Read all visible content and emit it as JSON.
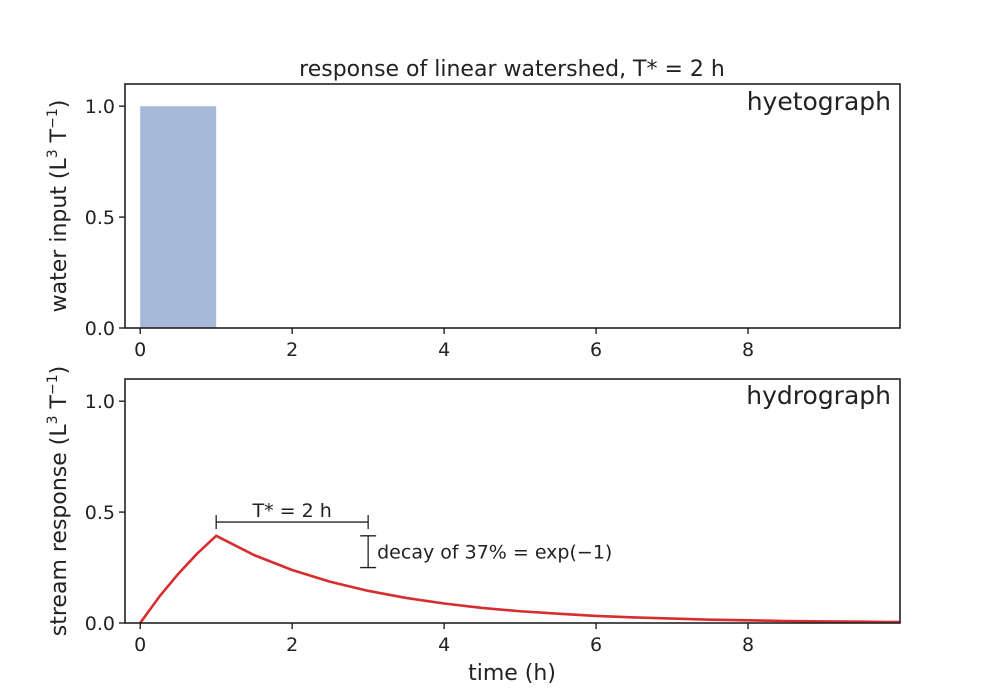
{
  "figure": {
    "title": "response of linear watershed, T* = 2 h"
  },
  "chart_data": [
    {
      "type": "bar",
      "panel_label": "hyetograph",
      "title": "response of linear watershed, T* = 2 h",
      "ylabel_main": "water input (L",
      "ylabel_exp1": "3",
      "ylabel_mid": " T",
      "ylabel_exp2": "−1",
      "ylabel_end": ")",
      "xlabel": "",
      "xlim": [
        -0.2,
        10
      ],
      "ylim": [
        0,
        1.1
      ],
      "xticks": [
        0,
        2,
        4,
        6,
        8
      ],
      "xtick_labels": [
        "0",
        "2",
        "4",
        "6",
        "8"
      ],
      "yticks": [
        0,
        0.5,
        1.0
      ],
      "ytick_labels": [
        "0.0",
        "0.5",
        "1.0"
      ],
      "bars": [
        {
          "x_start": 0,
          "x_end": 1,
          "value": 1.0
        }
      ],
      "color": "#a6b9d8"
    },
    {
      "type": "line",
      "panel_label": "hydrograph",
      "ylabel_main": "stream response (L",
      "ylabel_exp1": "3",
      "ylabel_mid": " T",
      "ylabel_exp2": "−1",
      "ylabel_end": ")",
      "xlabel": "time (h)",
      "xlim": [
        -0.2,
        10
      ],
      "ylim": [
        0,
        1.1
      ],
      "xticks": [
        0,
        2,
        4,
        6,
        8
      ],
      "xtick_labels": [
        "0",
        "2",
        "4",
        "6",
        "8"
      ],
      "yticks": [
        0,
        0.5,
        1.0
      ],
      "ytick_labels": [
        "0.0",
        "0.5",
        "1.0"
      ],
      "series": [
        {
          "x": [
            0,
            0.25,
            0.5,
            0.75,
            1,
            1.5,
            2,
            2.5,
            3,
            3.5,
            4,
            4.5,
            5,
            5.5,
            6,
            6.5,
            7,
            7.5,
            8,
            8.5,
            9,
            9.5,
            10
          ],
          "y": [
            0,
            0.118,
            0.221,
            0.313,
            0.393,
            0.306,
            0.239,
            0.186,
            0.145,
            0.113,
            0.088,
            0.068,
            0.053,
            0.042,
            0.032,
            0.025,
            0.02,
            0.015,
            0.012,
            0.009,
            0.007,
            0.006,
            0.004
          ],
          "color": "#d62e2e"
        }
      ],
      "annotations": [
        {
          "text": "T* = 2 h",
          "type": "horizontal-bracket",
          "x_start": 1,
          "x_end": 3,
          "y": 0.455
        },
        {
          "text": "decay of 37% = exp(−1)",
          "type": "vertical-bracket",
          "x": 3,
          "y_start": 0.25,
          "y_end": 0.393
        }
      ]
    }
  ]
}
